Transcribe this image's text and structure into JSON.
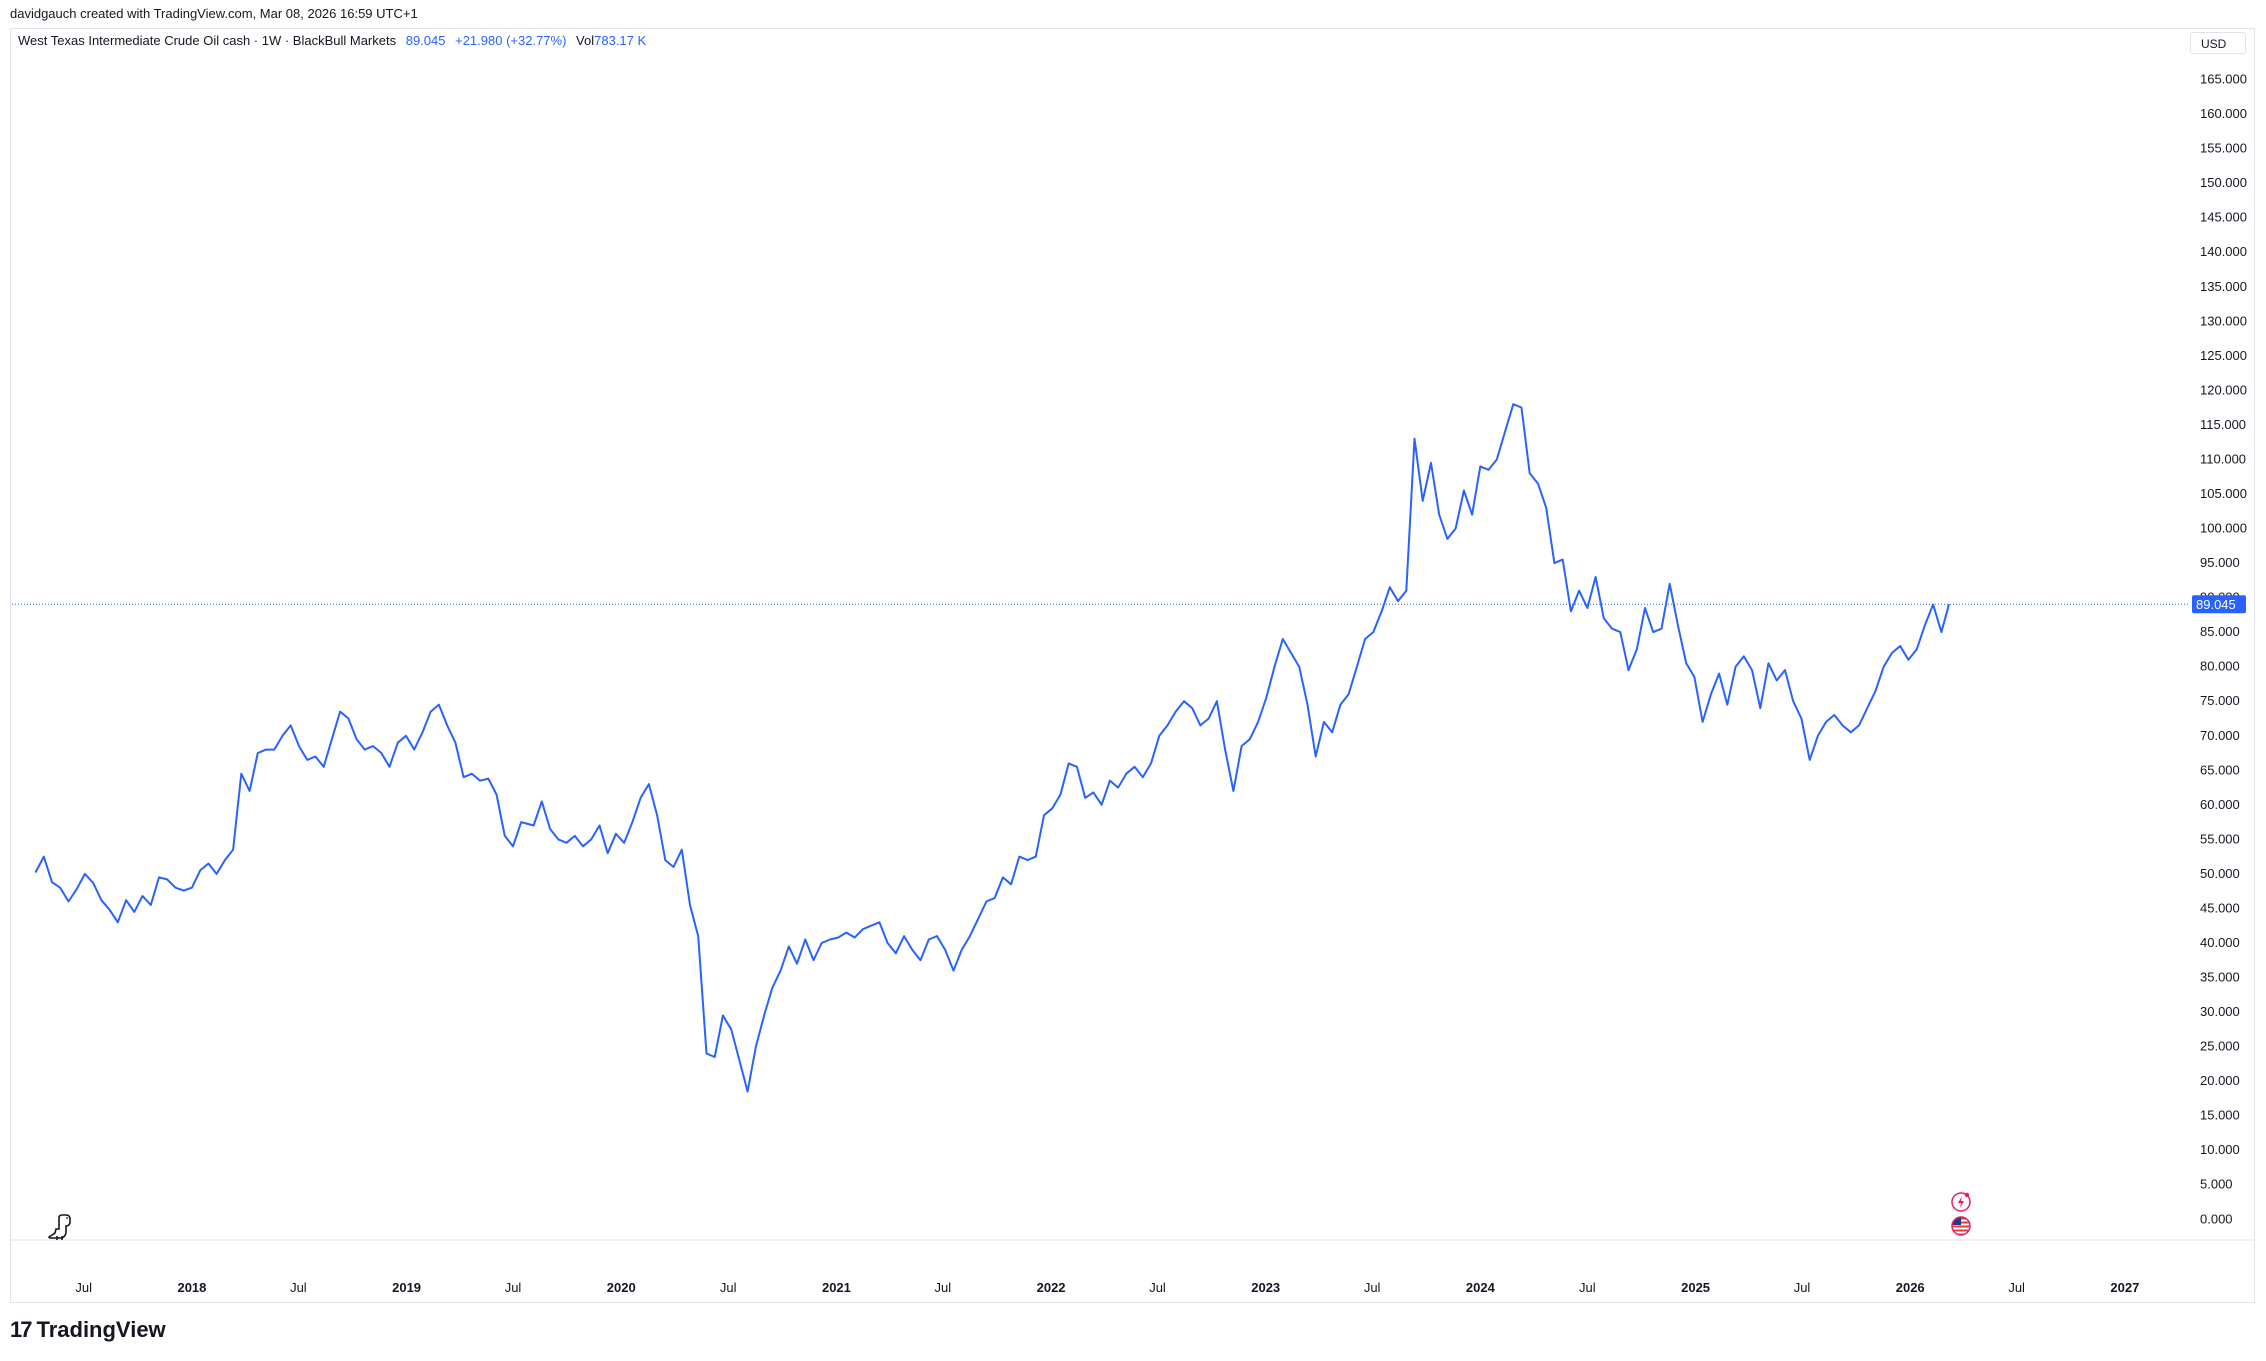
{
  "header": {
    "attribution": "davidgauch created with TradingView.com, Mar 08, 2026 16:59 UTC+1"
  },
  "legend": {
    "symbol": "West Texas Intermediate Crude Oil cash · 1W · BlackBull Markets",
    "price": "89.045",
    "change": "+21.980 (+32.77%)",
    "volume_label": "Vol",
    "volume_value": "783.17 K"
  },
  "currency": "USD",
  "brand": {
    "name": "TradingView"
  },
  "colors": {
    "line": "#2962ff",
    "last_price_bg": "#2962ff",
    "grid": "#e0e3eb"
  },
  "icons": [
    "dino-icon",
    "lightning-event-icon",
    "us-flag-event-icon"
  ],
  "chart_data": {
    "type": "line",
    "ylim": [
      -3,
      170
    ],
    "y_ticks": [
      0,
      5,
      10,
      15,
      20,
      25,
      30,
      35,
      40,
      45,
      50,
      55,
      60,
      65,
      70,
      75,
      80,
      85,
      90,
      95,
      100,
      105,
      110,
      115,
      120,
      125,
      130,
      135,
      140,
      145,
      150,
      155,
      160,
      165
    ],
    "y_tick_labels": [
      "0.000",
      "5.000",
      "10.000",
      "15.000",
      "20.000",
      "25.000",
      "30.000",
      "35.000",
      "40.000",
      "45.000",
      "50.000",
      "55.000",
      "60.000",
      "65.000",
      "70.000",
      "75.000",
      "80.000",
      "85.000",
      "90.000",
      "95.000",
      "100.000",
      "105.000",
      "110.000",
      "115.000",
      "120.000",
      "125.000",
      "130.000",
      "135.000",
      "140.000",
      "145.000",
      "150.000",
      "155.000",
      "160.000",
      "165.000"
    ],
    "x_range": [
      "2017-03-01",
      "2027-04-15"
    ],
    "x_ticks": [
      {
        "label": "Jul",
        "date": "2017-07-01",
        "year": false
      },
      {
        "label": "2018",
        "date": "2018-01-01",
        "year": true
      },
      {
        "label": "Jul",
        "date": "2018-07-01",
        "year": false
      },
      {
        "label": "2019",
        "date": "2019-01-01",
        "year": true
      },
      {
        "label": "Jul",
        "date": "2019-07-01",
        "year": false
      },
      {
        "label": "2020",
        "date": "2020-01-01",
        "year": true
      },
      {
        "label": "Jul",
        "date": "2020-07-01",
        "year": false
      },
      {
        "label": "2021",
        "date": "2021-01-01",
        "year": true
      },
      {
        "label": "Jul",
        "date": "2021-07-01",
        "year": false
      },
      {
        "label": "2022",
        "date": "2022-01-01",
        "year": true
      },
      {
        "label": "Jul",
        "date": "2022-07-01",
        "year": false
      },
      {
        "label": "2023",
        "date": "2023-01-01",
        "year": true
      },
      {
        "label": "Jul",
        "date": "2023-07-01",
        "year": false
      },
      {
        "label": "2024",
        "date": "2024-01-01",
        "year": true
      },
      {
        "label": "Jul",
        "date": "2024-07-01",
        "year": false
      },
      {
        "label": "2025",
        "date": "2025-01-01",
        "year": true
      },
      {
        "label": "Jul",
        "date": "2025-07-01",
        "year": false
      },
      {
        "label": "2026",
        "date": "2026-01-01",
        "year": true
      },
      {
        "label": "Jul",
        "date": "2026-07-01",
        "year": false
      },
      {
        "label": "2027",
        "date": "2027-01-01",
        "year": true
      }
    ],
    "last_price": 89.045,
    "last_price_label": "89.045",
    "series": [
      {
        "points": [
          [
            "2017-04-10",
            50.2
          ],
          [
            "2017-04-24",
            52.5
          ],
          [
            "2017-05-08",
            48.8
          ],
          [
            "2017-05-22",
            48.0
          ],
          [
            "2017-06-05",
            46.0
          ],
          [
            "2017-06-19",
            47.8
          ],
          [
            "2017-07-03",
            50.0
          ],
          [
            "2017-07-17",
            48.7
          ],
          [
            "2017-07-31",
            46.2
          ],
          [
            "2017-08-14",
            44.8
          ],
          [
            "2017-08-28",
            43.0
          ],
          [
            "2017-09-11",
            46.2
          ],
          [
            "2017-09-25",
            44.5
          ],
          [
            "2017-10-09",
            46.8
          ],
          [
            "2017-10-23",
            45.5
          ],
          [
            "2017-11-06",
            49.5
          ],
          [
            "2017-11-20",
            49.2
          ],
          [
            "2017-12-04",
            48.0
          ],
          [
            "2017-12-18",
            47.6
          ],
          [
            "2018-01-01",
            48.0
          ],
          [
            "2018-01-15",
            50.5
          ],
          [
            "2018-01-29",
            51.5
          ],
          [
            "2018-02-12",
            50.0
          ],
          [
            "2018-02-26",
            52.0
          ],
          [
            "2018-03-12",
            53.5
          ],
          [
            "2018-03-26",
            64.5
          ],
          [
            "2018-04-09",
            62.0
          ],
          [
            "2018-04-23",
            67.5
          ],
          [
            "2018-05-07",
            68.0
          ],
          [
            "2018-05-21",
            68.0
          ],
          [
            "2018-06-04",
            70.0
          ],
          [
            "2018-06-18",
            71.5
          ],
          [
            "2018-07-02",
            68.5
          ],
          [
            "2018-07-16",
            66.5
          ],
          [
            "2018-07-30",
            67.0
          ],
          [
            "2018-08-13",
            65.5
          ],
          [
            "2018-08-27",
            69.5
          ],
          [
            "2018-09-10",
            73.5
          ],
          [
            "2018-09-24",
            72.5
          ],
          [
            "2018-10-08",
            69.5
          ],
          [
            "2018-10-22",
            68.0
          ],
          [
            "2018-11-05",
            68.5
          ],
          [
            "2018-11-19",
            67.5
          ],
          [
            "2018-12-03",
            65.5
          ],
          [
            "2018-12-17",
            69.0
          ],
          [
            "2018-12-31",
            70.0
          ],
          [
            "2019-01-14",
            68.0
          ],
          [
            "2019-01-28",
            70.5
          ],
          [
            "2019-02-11",
            73.5
          ],
          [
            "2019-02-25",
            74.5
          ],
          [
            "2019-03-11",
            71.5
          ],
          [
            "2019-03-25",
            69.0
          ],
          [
            "2019-04-08",
            64.0
          ],
          [
            "2019-04-22",
            64.5
          ],
          [
            "2019-05-06",
            63.5
          ],
          [
            "2019-05-20",
            63.8
          ],
          [
            "2019-06-03",
            61.5
          ],
          [
            "2019-06-17",
            55.5
          ],
          [
            "2019-07-01",
            54.0
          ],
          [
            "2019-07-15",
            57.5
          ],
          [
            "2019-08-05",
            57.0
          ],
          [
            "2019-08-19",
            60.5
          ],
          [
            "2019-09-02",
            56.5
          ],
          [
            "2019-09-16",
            55.0
          ],
          [
            "2019-09-30",
            54.5
          ],
          [
            "2019-10-14",
            55.5
          ],
          [
            "2019-10-28",
            54.0
          ],
          [
            "2019-11-11",
            55.0
          ],
          [
            "2019-11-25",
            57.0
          ],
          [
            "2019-12-09",
            53.0
          ],
          [
            "2019-12-23",
            55.8
          ],
          [
            "2020-01-06",
            54.5
          ],
          [
            "2020-01-20",
            57.5
          ],
          [
            "2020-02-03",
            61.0
          ],
          [
            "2020-02-17",
            63.0
          ],
          [
            "2020-03-02",
            58.5
          ],
          [
            "2020-03-16",
            52.0
          ],
          [
            "2020-03-30",
            51.0
          ],
          [
            "2020-04-13",
            53.5
          ],
          [
            "2020-04-27",
            45.5
          ],
          [
            "2020-05-11",
            41.0
          ],
          [
            "2020-05-25",
            24.0
          ],
          [
            "2020-06-08",
            23.5
          ],
          [
            "2020-06-22",
            29.5
          ],
          [
            "2020-07-06",
            27.5
          ],
          [
            "2020-07-20",
            23.0
          ],
          [
            "2020-08-03",
            18.5
          ],
          [
            "2020-08-17",
            25.0
          ],
          [
            "2020-08-31",
            29.5
          ],
          [
            "2020-09-14",
            33.5
          ],
          [
            "2020-09-28",
            36.0
          ],
          [
            "2020-10-12",
            39.5
          ],
          [
            "2020-10-26",
            37.0
          ],
          [
            "2020-11-09",
            40.5
          ],
          [
            "2020-11-23",
            37.5
          ],
          [
            "2020-12-07",
            40.0
          ],
          [
            "2020-12-21",
            40.5
          ],
          [
            "2021-01-04",
            40.8
          ],
          [
            "2021-01-18",
            41.5
          ],
          [
            "2021-02-01",
            40.8
          ],
          [
            "2021-02-15",
            42.0
          ],
          [
            "2021-03-01",
            42.5
          ],
          [
            "2021-03-15",
            43.0
          ],
          [
            "2021-03-29",
            40.0
          ],
          [
            "2021-04-12",
            38.5
          ],
          [
            "2021-04-26",
            41.0
          ],
          [
            "2021-05-10",
            39.0
          ],
          [
            "2021-05-24",
            37.5
          ],
          [
            "2021-06-07",
            40.5
          ],
          [
            "2021-06-21",
            41.0
          ],
          [
            "2021-07-05",
            39.0
          ],
          [
            "2021-07-19",
            36.0
          ],
          [
            "2021-08-02",
            39.0
          ],
          [
            "2021-08-16",
            41.0
          ],
          [
            "2021-08-30",
            43.5
          ],
          [
            "2021-09-13",
            46.0
          ],
          [
            "2021-09-27",
            46.5
          ],
          [
            "2021-10-11",
            49.5
          ],
          [
            "2021-10-25",
            48.5
          ],
          [
            "2021-11-08",
            52.5
          ],
          [
            "2021-11-22",
            52.0
          ],
          [
            "2021-12-06",
            52.5
          ],
          [
            "2021-12-20",
            58.5
          ],
          [
            "2022-01-03",
            59.5
          ],
          [
            "2022-01-17",
            61.5
          ],
          [
            "2022-01-31",
            66.0
          ],
          [
            "2022-02-14",
            65.5
          ],
          [
            "2022-02-28",
            61.0
          ],
          [
            "2022-03-14",
            61.8
          ],
          [
            "2022-03-28",
            60.0
          ],
          [
            "2022-04-11",
            63.5
          ],
          [
            "2022-04-25",
            62.5
          ],
          [
            "2022-05-09",
            64.5
          ],
          [
            "2022-05-23",
            65.5
          ],
          [
            "2022-06-06",
            64.0
          ],
          [
            "2022-06-20",
            66.0
          ],
          [
            "2022-07-04",
            70.0
          ],
          [
            "2022-07-18",
            71.5
          ],
          [
            "2022-08-01",
            73.5
          ],
          [
            "2022-08-15",
            75.0
          ],
          [
            "2022-08-29",
            74.0
          ],
          [
            "2022-09-12",
            71.5
          ],
          [
            "2022-09-26",
            72.5
          ],
          [
            "2022-10-10",
            75.0
          ],
          [
            "2022-10-24",
            68.0
          ],
          [
            "2022-11-07",
            62.0
          ],
          [
            "2022-11-21",
            68.5
          ],
          [
            "2022-12-05",
            69.5
          ],
          [
            "2022-12-19",
            72.0
          ],
          [
            "2023-01-02",
            75.5
          ],
          [
            "2023-01-16",
            80.0
          ],
          [
            "2023-01-30",
            84.0
          ],
          [
            "2023-02-13",
            82.0
          ],
          [
            "2023-02-27",
            80.0
          ],
          [
            "2023-03-13",
            74.5
          ],
          [
            "2023-03-27",
            67.0
          ],
          [
            "2023-04-10",
            72.0
          ],
          [
            "2023-04-24",
            70.5
          ],
          [
            "2023-05-08",
            74.5
          ],
          [
            "2023-05-22",
            76.0
          ],
          [
            "2023-06-05",
            80.0
          ],
          [
            "2023-06-19",
            84.0
          ],
          [
            "2023-07-03",
            85.0
          ],
          [
            "2023-07-17",
            88.0
          ],
          [
            "2023-07-31",
            91.5
          ],
          [
            "2023-08-14",
            89.5
          ],
          [
            "2023-08-28",
            91.0
          ],
          [
            "2023-09-11",
            113.0
          ],
          [
            "2023-09-25",
            104.0
          ],
          [
            "2023-10-09",
            109.5
          ],
          [
            "2023-10-23",
            102.0
          ],
          [
            "2023-11-06",
            98.5
          ],
          [
            "2023-11-20",
            100.0
          ],
          [
            "2023-12-04",
            105.5
          ],
          [
            "2023-12-18",
            102.0
          ],
          [
            "2024-01-01",
            109.0
          ],
          [
            "2024-01-15",
            108.5
          ],
          [
            "2024-01-29",
            110.0
          ],
          [
            "2024-02-12",
            114.0
          ],
          [
            "2024-02-26",
            118.0
          ],
          [
            "2024-03-11",
            117.5
          ],
          [
            "2024-03-25",
            108.0
          ],
          [
            "2024-04-08",
            106.5
          ],
          [
            "2024-04-22",
            103.0
          ],
          [
            "2024-05-06",
            95.0
          ],
          [
            "2024-05-20",
            95.5
          ],
          [
            "2024-06-03",
            88.0
          ],
          [
            "2024-06-17",
            91.0
          ],
          [
            "2024-07-01",
            88.5
          ],
          [
            "2024-07-15",
            93.0
          ],
          [
            "2024-07-29",
            87.0
          ],
          [
            "2024-08-12",
            85.5
          ],
          [
            "2024-08-26",
            85.0
          ],
          [
            "2024-09-09",
            79.5
          ],
          [
            "2024-09-23",
            82.5
          ],
          [
            "2024-10-07",
            88.5
          ],
          [
            "2024-10-21",
            85.0
          ],
          [
            "2024-11-04",
            85.5
          ],
          [
            "2024-11-18",
            92.0
          ],
          [
            "2024-12-02",
            86.0
          ],
          [
            "2024-12-16",
            80.5
          ],
          [
            "2024-12-30",
            78.5
          ],
          [
            "2025-01-13",
            72.0
          ],
          [
            "2025-01-27",
            76.0
          ],
          [
            "2025-02-10",
            79.0
          ],
          [
            "2025-02-24",
            74.5
          ],
          [
            "2025-03-10",
            80.0
          ],
          [
            "2025-03-24",
            81.5
          ],
          [
            "2025-04-07",
            79.5
          ],
          [
            "2025-04-21",
            74.0
          ],
          [
            "2025-05-05",
            80.5
          ],
          [
            "2025-05-19",
            78.0
          ],
          [
            "2025-06-02",
            79.5
          ],
          [
            "2025-06-16",
            75.0
          ],
          [
            "2025-06-30",
            72.5
          ],
          [
            "2025-07-14",
            66.5
          ],
          [
            "2025-07-28",
            70.0
          ],
          [
            "2025-08-11",
            72.0
          ],
          [
            "2025-08-25",
            73.0
          ],
          [
            "2025-09-08",
            71.5
          ],
          [
            "2025-09-22",
            70.5
          ],
          [
            "2025-10-06",
            71.5
          ],
          [
            "2025-10-20",
            74.0
          ],
          [
            "2025-11-03",
            76.5
          ],
          [
            "2025-11-17",
            80.0
          ],
          [
            "2025-12-01",
            82.0
          ],
          [
            "2025-12-15",
            83.0
          ],
          [
            "2025-12-29",
            81.0
          ],
          [
            "2026-01-12",
            82.5
          ],
          [
            "2026-01-26",
            86.0
          ],
          [
            "2026-02-09",
            89.0
          ],
          [
            "2026-02-23",
            85.0
          ],
          [
            "2026-03-08",
            89.045
          ]
        ]
      }
    ]
  }
}
